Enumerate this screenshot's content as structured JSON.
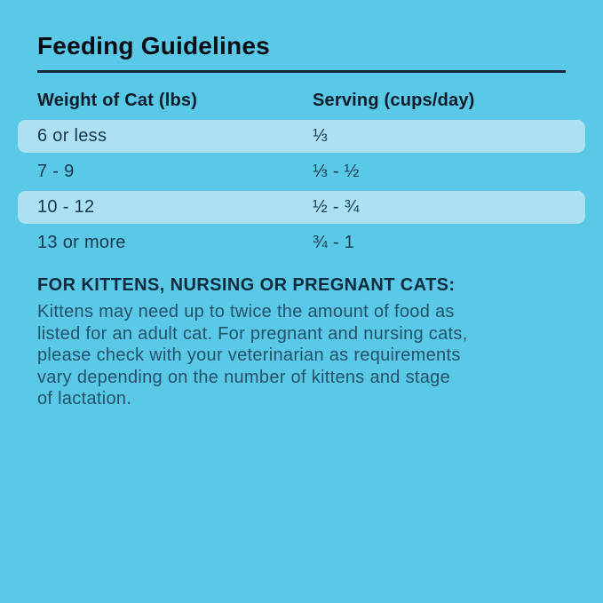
{
  "page": {
    "background_color": "#5AC8E7",
    "highlight_color": "#ACE1F2"
  },
  "title": "Feeding Guidelines",
  "table": {
    "headers": {
      "weight": "Weight of Cat (lbs)",
      "serving": "Serving (cups/day)"
    },
    "rows": [
      {
        "weight": "6 or less",
        "serving": "⅓",
        "highlighted": true
      },
      {
        "weight": "7 - 9",
        "serving": "⅓ - ½",
        "highlighted": false
      },
      {
        "weight": "10 - 12",
        "serving": "½ - ¾",
        "highlighted": true
      },
      {
        "weight": "13 or more",
        "serving": "¾ - 1",
        "highlighted": false
      }
    ]
  },
  "note": {
    "heading": "FOR KITTENS, NURSING OR PREGNANT CATS:",
    "lines": [
      "Kittens may need up to twice the amount of food as",
      "listed for an adult cat. For pregnant and nursing cats,",
      "please check with your veterinarian as requirements",
      "vary depending on the number of kittens and stage",
      "of lactation."
    ]
  }
}
